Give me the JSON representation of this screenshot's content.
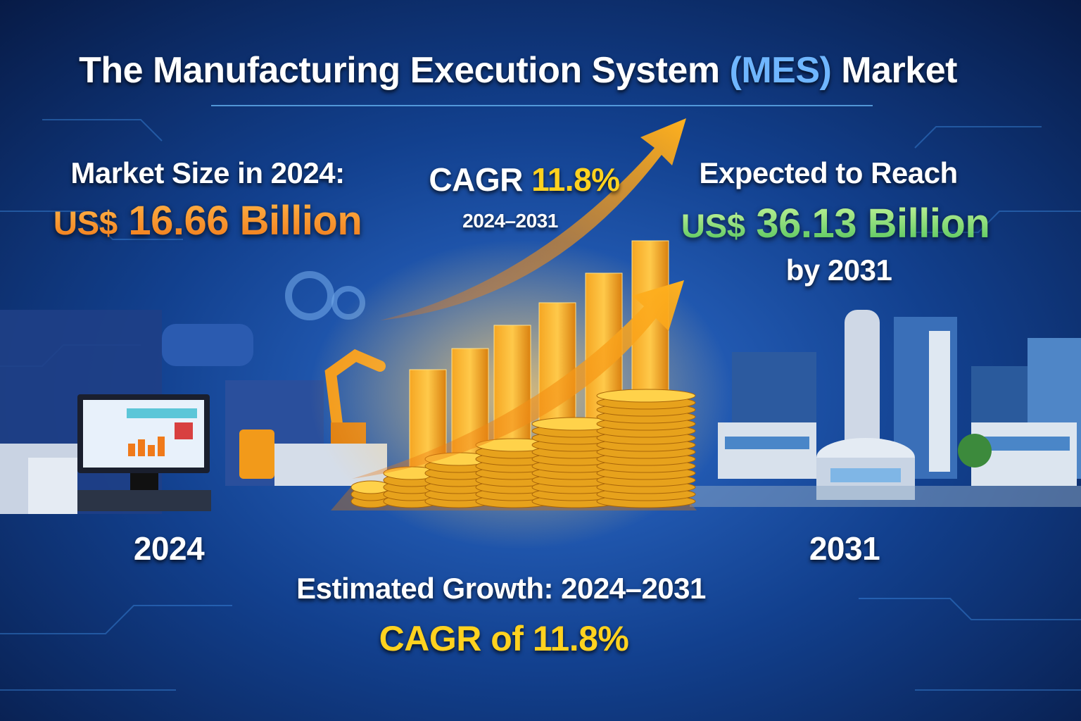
{
  "title": {
    "main": "The Manufacturing Execution System",
    "highlight": "(MES)",
    "end": "Market"
  },
  "market_2024": {
    "label": "Market Size in 2024:",
    "currency": "US$",
    "amount": "16.66 Billion"
  },
  "cagr_badge": {
    "label": "CAGR",
    "rate": "11.8%",
    "period": "2024–2031"
  },
  "forecast_2031": {
    "label": "Expected to Reach",
    "currency": "US$",
    "amount": "36.13 Billion",
    "by": "by 2031"
  },
  "year_left": "2024",
  "year_right": "2031",
  "footer": {
    "growth": "Estimated Growth: 2024–2031",
    "cagr_prefix": "CAGR of",
    "cagr_rate": "11.8%"
  }
}
